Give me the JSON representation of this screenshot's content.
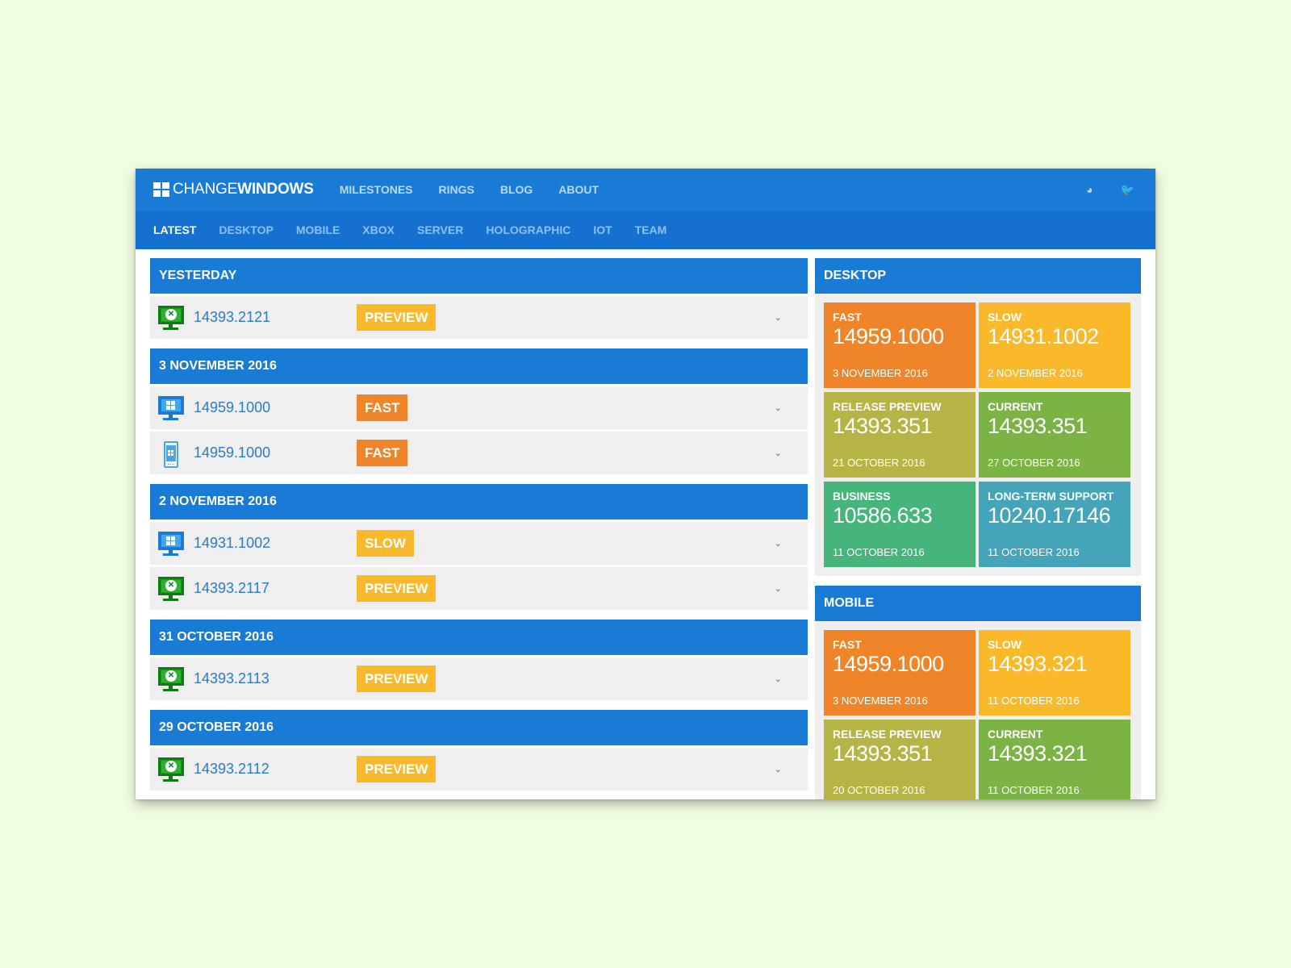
{
  "brand": {
    "change": "CHANGE",
    "windows": "WINDOWS"
  },
  "topnav": [
    "MILESTONES",
    "RINGS",
    "BLOG",
    "ABOUT"
  ],
  "topicons": [
    {
      "name": "dashboard-icon",
      "glyph": "◕"
    },
    {
      "name": "twitter-icon",
      "glyph": "🐦"
    }
  ],
  "subnav": [
    {
      "label": "LATEST",
      "active": true
    },
    {
      "label": "DESKTOP",
      "active": false
    },
    {
      "label": "MOBILE",
      "active": false
    },
    {
      "label": "XBOX",
      "active": false
    },
    {
      "label": "SERVER",
      "active": false
    },
    {
      "label": "HOLOGRAPHIC",
      "active": false
    },
    {
      "label": "IOT",
      "active": false
    },
    {
      "label": "TEAM",
      "active": false
    }
  ],
  "groups": [
    {
      "title": "YESTERDAY",
      "rows": [
        {
          "device": "xbox",
          "build": "14393.2121",
          "ring": "PREVIEW",
          "ring_color": "#f9b92b"
        }
      ]
    },
    {
      "title": "3 NOVEMBER 2016",
      "rows": [
        {
          "device": "desktop",
          "build": "14959.1000",
          "ring": "FAST",
          "ring_color": "#ef8528"
        },
        {
          "device": "mobile",
          "build": "14959.1000",
          "ring": "FAST",
          "ring_color": "#ef8528"
        }
      ]
    },
    {
      "title": "2 NOVEMBER 2016",
      "rows": [
        {
          "device": "desktop",
          "build": "14931.1002",
          "ring": "SLOW",
          "ring_color": "#f9b92b"
        },
        {
          "device": "xbox",
          "build": "14393.2117",
          "ring": "PREVIEW",
          "ring_color": "#f9b92b"
        }
      ]
    },
    {
      "title": "31 OCTOBER 2016",
      "rows": [
        {
          "device": "xbox",
          "build": "14393.2113",
          "ring": "PREVIEW",
          "ring_color": "#f9b92b"
        }
      ]
    },
    {
      "title": "29 OCTOBER 2016",
      "rows": [
        {
          "device": "xbox",
          "build": "14393.2112",
          "ring": "PREVIEW",
          "ring_color": "#f9b92b"
        }
      ]
    }
  ],
  "panels": [
    {
      "title": "DESKTOP",
      "tiles": [
        {
          "name": "FAST",
          "build": "14959.1000",
          "date": "3 NOVEMBER 2016",
          "color": "#ef8528"
        },
        {
          "name": "SLOW",
          "build": "14931.1002",
          "date": "2 NOVEMBER 2016",
          "color": "#f9b92b"
        },
        {
          "name": "RELEASE PREVIEW",
          "build": "14393.351",
          "date": "21 OCTOBER 2016",
          "color": "#b5b445"
        },
        {
          "name": "CURRENT",
          "build": "14393.351",
          "date": "27 OCTOBER 2016",
          "color": "#7cb345"
        },
        {
          "name": "BUSINESS",
          "build": "10586.633",
          "date": "11 OCTOBER 2016",
          "color": "#46b57b"
        },
        {
          "name": "LONG-TERM SUPPORT",
          "build": "10240.17146",
          "date": "11 OCTOBER 2016",
          "color": "#44a4b9"
        }
      ]
    },
    {
      "title": "MOBILE",
      "tiles": [
        {
          "name": "FAST",
          "build": "14959.1000",
          "date": "3 NOVEMBER 2016",
          "color": "#ef8528"
        },
        {
          "name": "SLOW",
          "build": "14393.321",
          "date": "11 OCTOBER 2016",
          "color": "#f9b92b"
        },
        {
          "name": "RELEASE PREVIEW",
          "build": "14393.351",
          "date": "20 OCTOBER 2016",
          "color": "#b5b445"
        },
        {
          "name": "CURRENT",
          "build": "14393.321",
          "date": "11 OCTOBER 2016",
          "color": "#7cb345"
        }
      ]
    }
  ]
}
